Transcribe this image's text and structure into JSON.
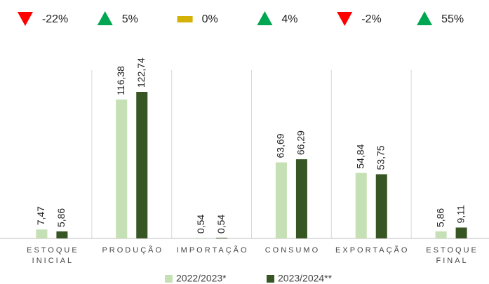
{
  "chart_data": {
    "type": "bar",
    "categories": [
      "ESTOQUE INICIAL",
      "PRODUÇÃO",
      "IMPORTAÇÃO",
      "CONSUMO",
      "EXPORTAÇÃO",
      "ESTOQUE FINAL"
    ],
    "series": [
      {
        "name": "2022/2023*",
        "color": "#c5e0b4",
        "values": [
          7.47,
          116.38,
          0.54,
          63.69,
          54.84,
          5.86
        ],
        "value_labels": [
          "7,47",
          "116,38",
          "0,54",
          "63,69",
          "54,84",
          "5,86"
        ]
      },
      {
        "name": "2023/2024**",
        "color": "#375623",
        "values": [
          5.86,
          122.74,
          0.54,
          66.29,
          53.75,
          9.11
        ],
        "value_labels": [
          "5,86",
          "122,74",
          "0,54",
          "66,29",
          "53,75",
          "9,11"
        ]
      }
    ],
    "changes": [
      -22,
      5,
      0,
      4,
      -2,
      55
    ],
    "change_labels": [
      "-22%",
      "5%",
      "0%",
      "4%",
      "-2%",
      "55%"
    ],
    "change_colors": {
      "down": "#ff0000",
      "up": "#00a651",
      "flat": "#d4b106"
    },
    "ylim": [
      0,
      140
    ],
    "legend": "bottom"
  }
}
